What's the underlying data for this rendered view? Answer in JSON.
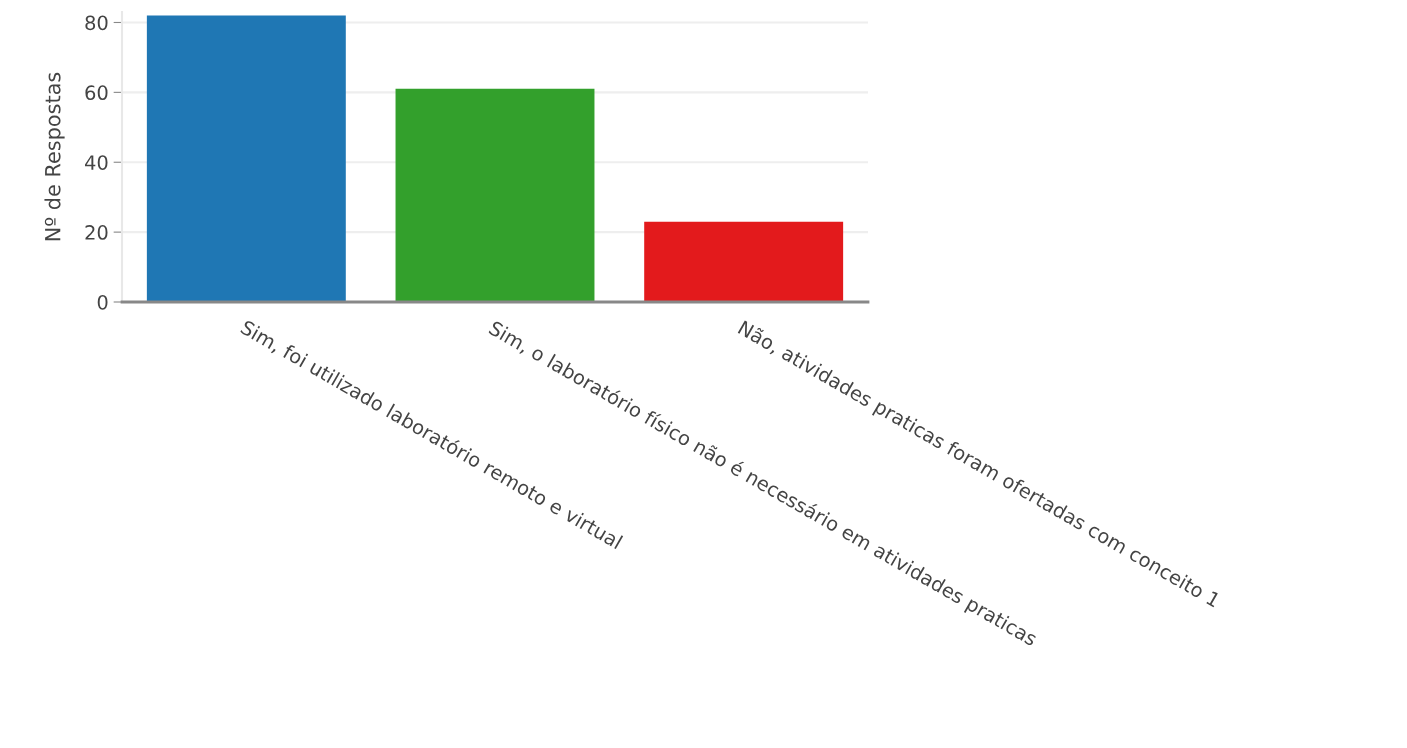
{
  "chart_data": {
    "type": "bar",
    "ylabel": "Nº de Respostas",
    "categories": [
      "Sim, foi utilizado laboratório remoto e virtual",
      "Sim, o laboratório físico não é necessário em atividades praticas",
      "Não, atividades praticas foram ofertadas com conceito 1"
    ],
    "values": [
      82,
      61,
      23
    ],
    "colors": [
      "#1f77b4",
      "#33a02c",
      "#e31a1c"
    ],
    "ylim": [
      0,
      83
    ],
    "yticks": [
      0,
      20,
      40,
      60,
      80
    ],
    "grid": "y",
    "legend": false
  }
}
